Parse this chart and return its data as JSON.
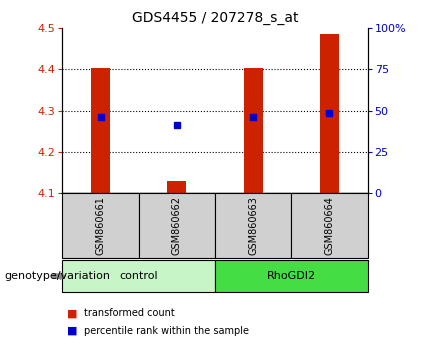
{
  "title": "GDS4455 / 207278_s_at",
  "samples": [
    "GSM860661",
    "GSM860662",
    "GSM860663",
    "GSM860664"
  ],
  "groups": [
    {
      "name": "control",
      "indices": [
        0,
        1
      ],
      "color": "#c8f5c8"
    },
    {
      "name": "RhoGDI2",
      "indices": [
        2,
        3
      ],
      "color": "#44dd44"
    }
  ],
  "ylim_left": [
    4.1,
    4.5
  ],
  "ylim_right": [
    0,
    100
  ],
  "yticks_left": [
    4.1,
    4.2,
    4.3,
    4.4,
    4.5
  ],
  "yticks_right": [
    0,
    25,
    50,
    75,
    100
  ],
  "ytick_labels_right": [
    "0",
    "25",
    "50",
    "75",
    "100%"
  ],
  "bar_baseline": 4.1,
  "bar_tops": [
    4.403,
    4.128,
    4.403,
    4.487
  ],
  "percentile_values": [
    4.285,
    4.265,
    4.285,
    4.295
  ],
  "bar_color": "#cc2200",
  "percentile_color": "#0000cc",
  "bar_width": 0.25,
  "legend_red_label": "transformed count",
  "legend_blue_label": "percentile rank within the sample",
  "label_genotype": "genotype/variation",
  "sample_box_color": "#d0d0d0",
  "title_fontsize": 10,
  "axis_fontsize": 8,
  "sample_fontsize": 7,
  "group_fontsize": 8,
  "legend_fontsize": 7
}
